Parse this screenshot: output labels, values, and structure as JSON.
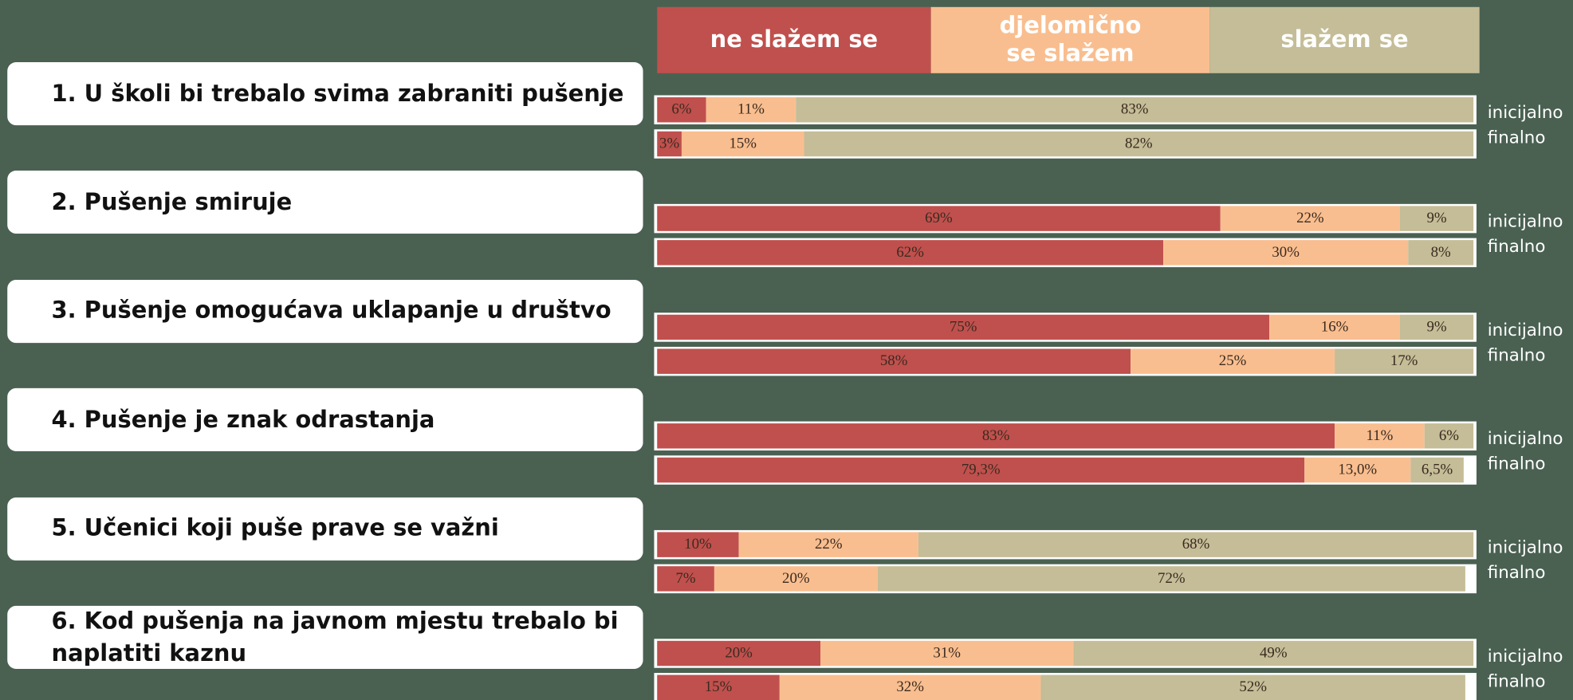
{
  "chart_data": {
    "type": "stacked-bar",
    "orientation": "horizontal",
    "xlim": [
      0,
      100
    ],
    "series": [
      {
        "name": "ne slažem se",
        "color": "#c0504d"
      },
      {
        "name": "djelomično se slažem",
        "color": "#f9be8f"
      },
      {
        "name": "slažem se",
        "color": "#c4bd97"
      }
    ],
    "panels": [
      {
        "title": "1. U školi bi trebalo svima zabraniti pušenje",
        "categories": [
          "inicijalno",
          "finalno"
        ],
        "values": [
          [
            6,
            11,
            83
          ],
          [
            3,
            15,
            82
          ]
        ],
        "value_labels": [
          [
            "6%",
            "11%",
            "83%"
          ],
          [
            "3%",
            "15%",
            "82%"
          ]
        ]
      },
      {
        "title": "2. Pušenje smiruje",
        "categories": [
          "inicijalno",
          "finalno"
        ],
        "values": [
          [
            69,
            22,
            9
          ],
          [
            62,
            30,
            8
          ]
        ],
        "value_labels": [
          [
            "69%",
            "22%",
            "9%"
          ],
          [
            "62%",
            "30%",
            "8%"
          ]
        ]
      },
      {
        "title": "3. Pušenje omogućava uklapanje u društvo",
        "categories": [
          "inicijalno",
          "finalno"
        ],
        "values": [
          [
            75,
            16,
            9
          ],
          [
            58,
            25,
            17
          ]
        ],
        "value_labels": [
          [
            "75%",
            "16%",
            "9%"
          ],
          [
            "58%",
            "25%",
            "17%"
          ]
        ]
      },
      {
        "title": "4. Pušenje je znak odrastanja",
        "categories": [
          "inicijalno",
          "finalno"
        ],
        "values": [
          [
            83,
            11,
            6
          ],
          [
            79.3,
            13.0,
            6.5
          ]
        ],
        "value_labels": [
          [
            "83%",
            "11%",
            "6%"
          ],
          [
            "79,3%",
            "13,0%",
            "6,5%"
          ]
        ]
      },
      {
        "title": "5. Učenici koji puše prave se važni",
        "categories": [
          "inicijalno",
          "finalno"
        ],
        "values": [
          [
            10,
            22,
            68
          ],
          [
            7,
            20,
            72
          ]
        ],
        "value_labels": [
          [
            "10%",
            "22%",
            "68%"
          ],
          [
            "7%",
            "20%",
            "72%"
          ]
        ]
      },
      {
        "title": "6. Kod pušenja na javnom mjestu trebalo bi naplatiti kaznu",
        "categories": [
          "inicijalno",
          "finalno"
        ],
        "values": [
          [
            20,
            31,
            49
          ],
          [
            15,
            32,
            52
          ]
        ],
        "value_labels": [
          [
            "20%",
            "31%",
            "49%"
          ],
          [
            "15%",
            "32%",
            "52%"
          ]
        ]
      }
    ]
  }
}
